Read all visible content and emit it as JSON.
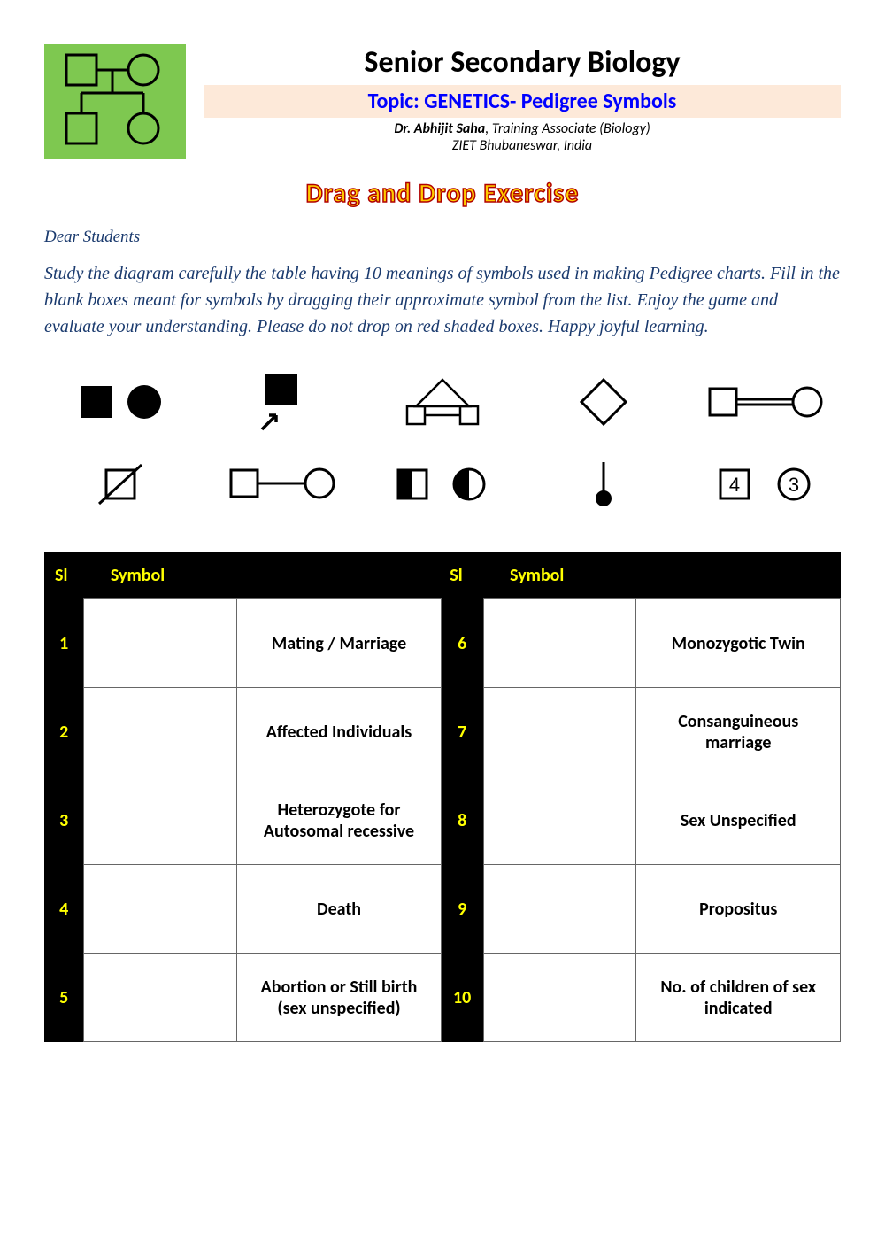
{
  "header": {
    "title": "Senior Secondary Biology",
    "topic": "Topic: GENETICS- Pedigree Symbols",
    "author_name": "Dr. Abhijit Saha",
    "author_role": ", Training Associate (Biology)",
    "institute": "ZIET Bhubaneswar, India"
  },
  "exercise_title": "Drag and Drop Exercise",
  "greeting": "Dear Students",
  "instructions": "Study the diagram carefully the table having 10 meanings of symbols used in making Pedigree charts. Fill in the blank boxes meant for symbols by dragging their approximate symbol from the list. Enjoy the game and evaluate your understanding. Please do not drop on red shaded boxes. Happy joyful learning.",
  "symbols": [
    {
      "id": "affected",
      "name": "affected-individuals-symbol"
    },
    {
      "id": "propositus",
      "name": "propositus-symbol"
    },
    {
      "id": "monotwin",
      "name": "monozygotic-twin-symbol"
    },
    {
      "id": "unspecified",
      "name": "sex-unspecified-symbol"
    },
    {
      "id": "consang",
      "name": "consanguineous-symbol"
    },
    {
      "id": "death",
      "name": "death-symbol"
    },
    {
      "id": "mating",
      "name": "mating-symbol"
    },
    {
      "id": "hetero",
      "name": "heterozygote-symbol"
    },
    {
      "id": "abortion",
      "name": "abortion-symbol"
    },
    {
      "id": "children",
      "name": "children-count-symbol"
    }
  ],
  "table": {
    "headers": {
      "sl": "Sl",
      "symbol": "Symbol"
    },
    "left": [
      {
        "n": "1",
        "meaning": "Mating / Marriage"
      },
      {
        "n": "2",
        "meaning": "Affected Individuals"
      },
      {
        "n": "3",
        "meaning": "Heterozygote for Autosomal recessive"
      },
      {
        "n": "4",
        "meaning": "Death"
      },
      {
        "n": "5",
        "meaning": "Abortion or Still birth (sex unspecified)"
      }
    ],
    "right": [
      {
        "n": "6",
        "meaning": "Monozygotic Twin"
      },
      {
        "n": "7",
        "meaning": "Consanguineous marriage"
      },
      {
        "n": "8",
        "meaning": "Sex Unspecified"
      },
      {
        "n": "9",
        "meaning": "Propositus"
      },
      {
        "n": "10",
        "meaning": "No. of children of sex indicated"
      }
    ]
  },
  "colors": {
    "logo_bg": "#7ec850",
    "topic_bg": "#fde9d9",
    "topic_text": "#0000ff",
    "drag_fill": "#ffcc00",
    "drag_stroke": "#b00000",
    "instruction_text": "#1a3a6e",
    "table_header_bg": "#000000",
    "table_header_text": "#ffff00"
  }
}
